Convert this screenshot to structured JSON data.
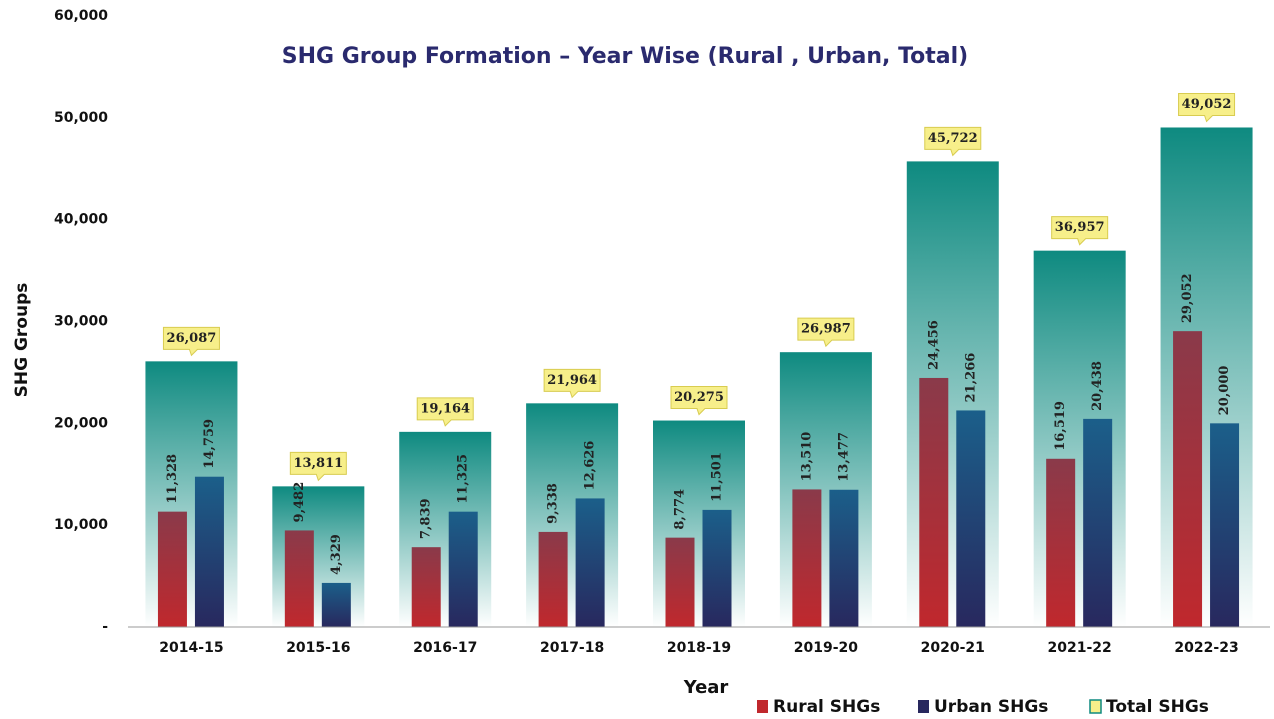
{
  "chart_data": {
    "type": "bar",
    "title": "SHG Group Formation – Year Wise (Rural , Urban, Total)",
    "x_label": "Year",
    "y_label": "SHG Groups",
    "categories": [
      "2014-15",
      "2015-16",
      "2016-17",
      "2017-18",
      "2018-19",
      "2019-20",
      "2020-21",
      "2021-22",
      "2022-23"
    ],
    "series": [
      {
        "name": "Rural SHGs",
        "color": "#c0282d",
        "values": [
          11328,
          9482,
          7839,
          9338,
          8774,
          13510,
          24456,
          16519,
          29052
        ],
        "value_labels": [
          "11,328",
          "9,482",
          "7,839",
          "9,338",
          "8,774",
          "13,510",
          "24,456",
          "16,519",
          "29,052"
        ]
      },
      {
        "name": "Urban SHGs",
        "color": "#28285e",
        "values": [
          14759,
          4329,
          11325,
          12626,
          11501,
          13477,
          21266,
          20438,
          20000
        ],
        "value_labels": [
          "14,759",
          "4,329",
          "11,325",
          "12,626",
          "11,501",
          "13,477",
          "21,266",
          "20,438",
          "20,000"
        ]
      },
      {
        "name": "Total SHGs",
        "color": "#0e8a80",
        "values": [
          26087,
          13811,
          19164,
          21964,
          20275,
          26987,
          45722,
          36957,
          49052
        ],
        "value_labels": [
          "26,087",
          "13,811",
          "19,164",
          "21,964",
          "20,275",
          "26,987",
          "45,722",
          "36,957",
          "49,052"
        ]
      }
    ],
    "ylim": [
      0,
      60000
    ],
    "yticks": [
      {
        "value": 0,
        "label": "-"
      },
      {
        "value": 10000,
        "label": "10,000"
      },
      {
        "value": 20000,
        "label": "20,000"
      },
      {
        "value": 30000,
        "label": "30,000"
      },
      {
        "value": 40000,
        "label": "40,000"
      },
      {
        "value": 50000,
        "label": "50,000"
      },
      {
        "value": 60000,
        "label": "60,000"
      }
    ],
    "grid": false
  }
}
